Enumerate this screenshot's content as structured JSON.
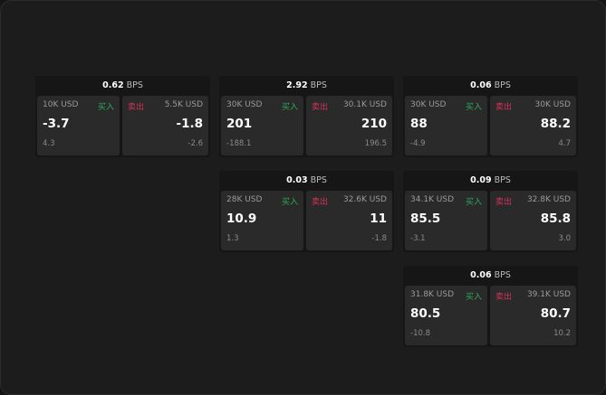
{
  "unit": "BPS",
  "buy_label": "买入",
  "sell_label": "卖出",
  "colors": {
    "buy": "#2faa5a",
    "sell": "#d6335a"
  },
  "tiles": [
    {
      "spread": "0.62",
      "bid_size": "10K USD",
      "bid": "-3.7",
      "bid_change": "4.3",
      "ask_size": "5.5K USD",
      "ask": "-1.8",
      "ask_change": "-2.6"
    },
    {
      "spread": "2.92",
      "bid_size": "30K USD",
      "bid": "201",
      "bid_change": "-188.1",
      "ask_size": "30.1K USD",
      "ask": "210",
      "ask_change": "196.5"
    },
    {
      "spread": "0.06",
      "bid_size": "30K USD",
      "bid": "88",
      "bid_change": "-4.9",
      "ask_size": "30K USD",
      "ask": "88.2",
      "ask_change": "4.7"
    },
    {
      "spread": "0.03",
      "bid_size": "28K USD",
      "bid": "10.9",
      "bid_change": "1.3",
      "ask_size": "32.6K USD",
      "ask": "11",
      "ask_change": "-1.8"
    },
    {
      "spread": "0.09",
      "bid_size": "34.1K USD",
      "bid": "85.5",
      "bid_change": "-3.1",
      "ask_size": "32.8K USD",
      "ask": "85.8",
      "ask_change": "3.0"
    },
    {
      "spread": "0.06",
      "bid_size": "31.8K USD",
      "bid": "80.5",
      "bid_change": "-10.8",
      "ask_size": "39.1K USD",
      "ask": "80.7",
      "ask_change": "10.2"
    }
  ]
}
